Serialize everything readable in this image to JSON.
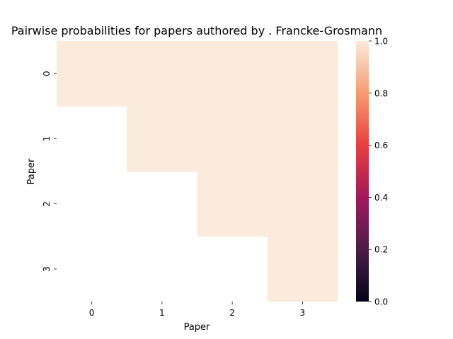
{
  "chart_data": {
    "type": "heatmap",
    "title": "Pairwise probabilities for papers authored by . Francke-Grosmann",
    "xlabel": "Paper",
    "ylabel": "Paper",
    "x_categories": [
      "0",
      "1",
      "2",
      "3"
    ],
    "y_categories": [
      "0",
      "1",
      "2",
      "3"
    ],
    "values": [
      [
        1.0,
        1.0,
        1.0,
        1.0
      ],
      [
        null,
        1.0,
        1.0,
        1.0
      ],
      [
        null,
        null,
        1.0,
        1.0
      ],
      [
        null,
        null,
        null,
        1.0
      ]
    ],
    "colorbar": {
      "range": [
        0.0,
        1.0
      ],
      "ticks": [
        "0.0",
        "0.2",
        "0.4",
        "0.6",
        "0.8",
        "1.0"
      ],
      "colormap": "rocket",
      "color_stops": [
        "#03051a",
        "#4c1d4b",
        "#a11a5b",
        "#e83f3f",
        "#f69c73",
        "#faebdd"
      ]
    },
    "grid": false
  }
}
